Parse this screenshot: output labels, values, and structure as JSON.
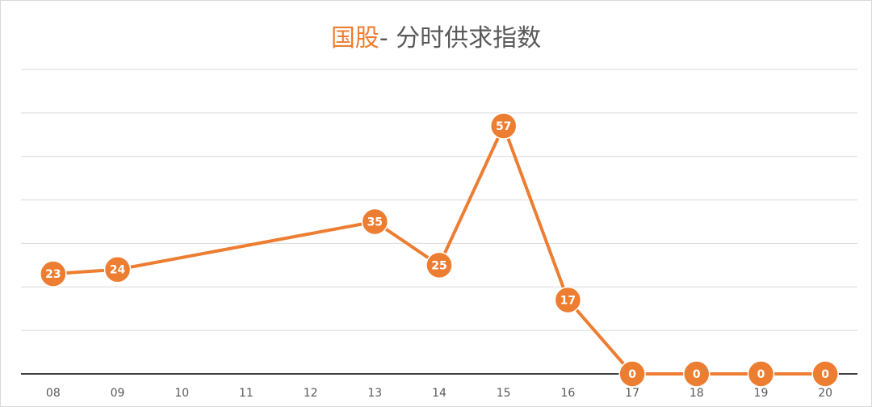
{
  "chart_data": {
    "type": "line",
    "title_accent": "国股",
    "title_rest": "- 分时供求指数",
    "categories": [
      "08",
      "09",
      "10",
      "11",
      "12",
      "13",
      "14",
      "15",
      "16",
      "17",
      "18",
      "19",
      "20"
    ],
    "series": [
      {
        "values": [
          23,
          24,
          null,
          null,
          null,
          35,
          25,
          57,
          17,
          0,
          0,
          0,
          0
        ]
      }
    ],
    "data_labels": [
      "23",
      "24",
      "",
      "",
      "",
      "35",
      "25",
      "57",
      "17",
      "0",
      "0",
      "0",
      "0"
    ],
    "ylim": [
      0,
      70
    ],
    "grid": true,
    "colors": {
      "line": "#ed7d31",
      "grid": "#d9d9d9",
      "axis": "#404040",
      "tick": "#595959"
    }
  }
}
